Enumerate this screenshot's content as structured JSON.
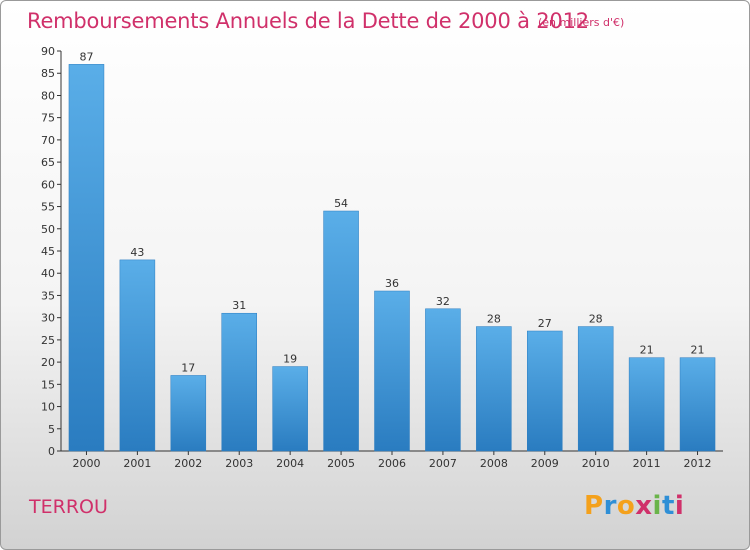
{
  "header": {
    "title": "Remboursements Annuels de la Dette de 2000 à 2012",
    "unit": "(en milliers d'€)"
  },
  "footer": {
    "place": "TERROU",
    "logo": [
      "P",
      "r",
      "o",
      "x",
      "i",
      "t",
      "i"
    ]
  },
  "colors": {
    "title": "#d0306a",
    "bar_top": "#5aaee8",
    "bar_bottom": "#2a7cc0",
    "axis": "#333333",
    "grid": "#d8d8d8",
    "logo": [
      "#f4a11c",
      "#2f8fd6",
      "#f4a11c",
      "#d0306a",
      "#6ab44a",
      "#2f8fd6",
      "#d0306a"
    ]
  },
  "chart_data": {
    "type": "bar",
    "categories": [
      "2000",
      "2001",
      "2002",
      "2003",
      "2004",
      "2005",
      "2006",
      "2007",
      "2008",
      "2009",
      "2010",
      "2011",
      "2012"
    ],
    "values": [
      87,
      43,
      17,
      31,
      19,
      54,
      36,
      32,
      28,
      27,
      28,
      21,
      21
    ],
    "title": "Remboursements Annuels de la Dette de 2000 à 2012",
    "xlabel": "",
    "ylabel": "",
    "ylim": [
      0,
      90
    ],
    "yticks": [
      0,
      5,
      10,
      15,
      20,
      25,
      30,
      35,
      40,
      45,
      50,
      55,
      60,
      65,
      70,
      75,
      80,
      85,
      90
    ],
    "data_labels": true,
    "grid": false,
    "legend": "none"
  }
}
